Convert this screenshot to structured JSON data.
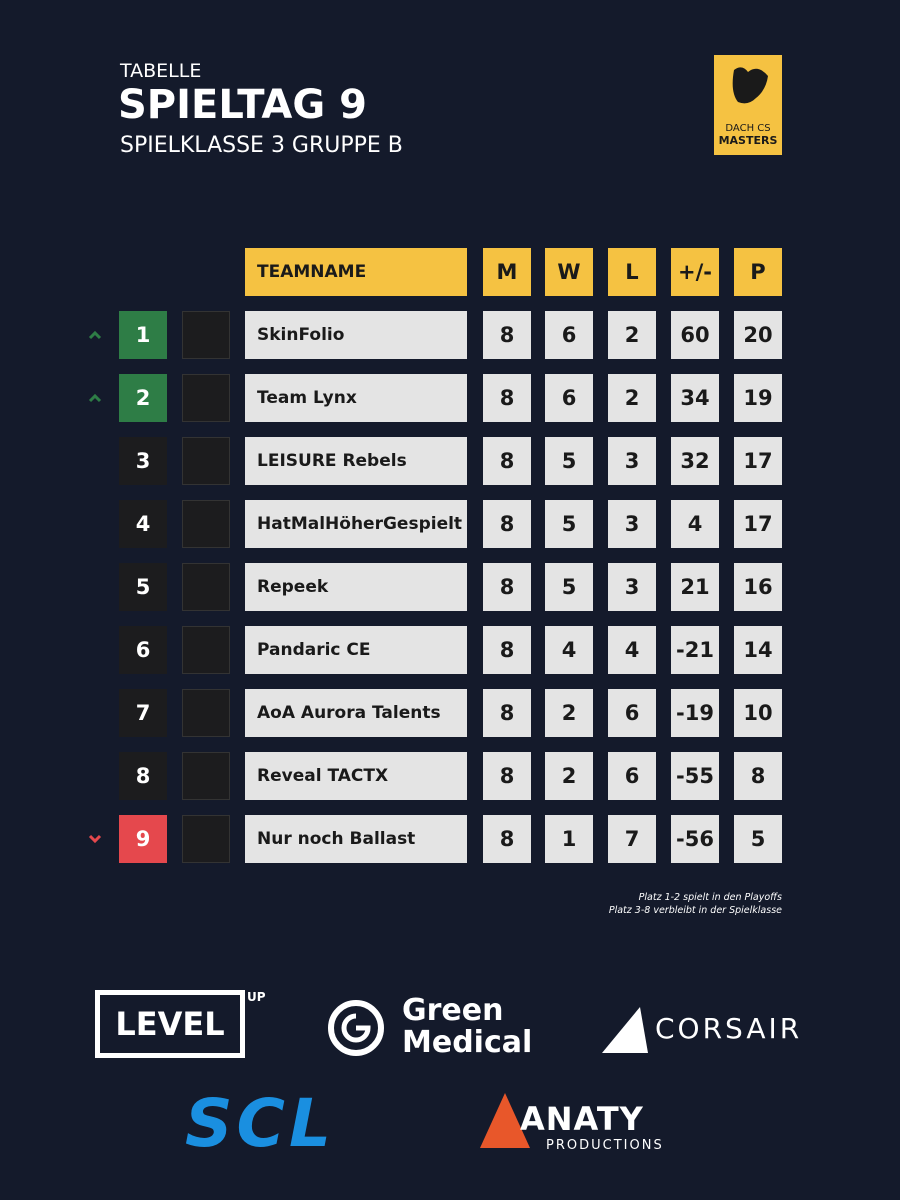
{
  "header": {
    "kicker": "TABELLE",
    "title": "SPIELTAG 9",
    "subtitle": "SPIELKLASSE 3 GRUPPE B"
  },
  "badge": {
    "top": "DACH CS",
    "bottom": "MASTERS"
  },
  "table": {
    "columns": [
      "TEAMNAME",
      "M",
      "W",
      "L",
      "+/-",
      "P"
    ],
    "rows": [
      {
        "rank": "1",
        "team": "SkinFolio",
        "cells": [
          "8",
          "6",
          "2",
          "60",
          "20"
        ],
        "rank_color": "#2e7d46",
        "marker": "up"
      },
      {
        "rank": "2",
        "team": "Team Lynx",
        "cells": [
          "8",
          "6",
          "2",
          "34",
          "19"
        ],
        "rank_color": "#2e7d46",
        "marker": "up"
      },
      {
        "rank": "3",
        "team": "LEISURE Rebels",
        "cells": [
          "8",
          "5",
          "3",
          "32",
          "17"
        ],
        "rank_color": "#1c1c1e"
      },
      {
        "rank": "4",
        "team": "HatMalHöherGespielt",
        "cells": [
          "8",
          "5",
          "3",
          "4",
          "17"
        ],
        "rank_color": "#1c1c1e"
      },
      {
        "rank": "5",
        "team": "Repeek",
        "cells": [
          "8",
          "5",
          "3",
          "21",
          "16"
        ],
        "rank_color": "#1c1c1e"
      },
      {
        "rank": "6",
        "team": "Pandaric CE",
        "cells": [
          "8",
          "4",
          "4",
          "-21",
          "14"
        ],
        "rank_color": "#1c1c1e"
      },
      {
        "rank": "7",
        "team": "AoA Aurora Talents",
        "cells": [
          "8",
          "2",
          "6",
          "-19",
          "10"
        ],
        "rank_color": "#1c1c1e"
      },
      {
        "rank": "8",
        "team": "Reveal TACTX",
        "cells": [
          "8",
          "2",
          "6",
          "-55",
          "8"
        ],
        "rank_color": "#1c1c1e"
      },
      {
        "rank": "9",
        "team": "Nur noch Ballast",
        "cells": [
          "8",
          "1",
          "7",
          "-56",
          "5"
        ],
        "rank_color": "#e5484d",
        "marker": "down"
      }
    ]
  },
  "notes": [
    "Platz 1-2 spielt in den Playoffs",
    "Platz 3-8 verbleibt in der Spielklasse"
  ],
  "sponsors": {
    "levelup": "LEVEL",
    "levelup_small": "UP",
    "green1": "Green",
    "green2": "Medical",
    "corsair": "CORSAIR",
    "scl": "SCL",
    "anaty": "ANATY",
    "anaty_sub": "PRODUCTIONS"
  }
}
